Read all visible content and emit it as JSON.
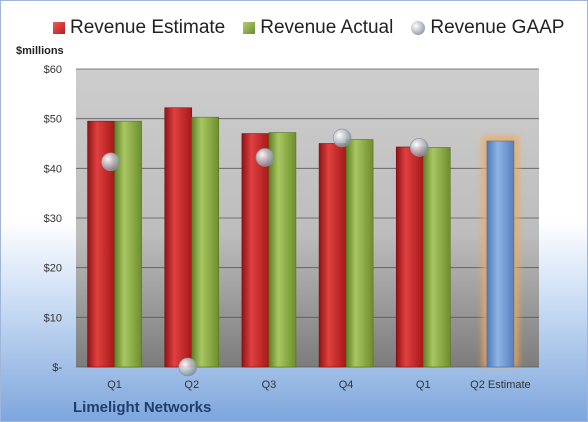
{
  "legend": {
    "estimate_label": "Revenue Estimate",
    "actual_label": "Revenue Actual",
    "gaap_label": "Revenue GAAP"
  },
  "unit_label": "$millions",
  "company": "Limelight Networks",
  "colors": {
    "estimate": "#c62828",
    "actual": "#8aab45",
    "gaap": "#a9b0b8",
    "future_estimate": "#6f9bd6",
    "future_glow": "#f2a85a"
  },
  "chart_data": {
    "type": "bar",
    "categories": [
      "Q1",
      "Q2",
      "Q3",
      "Q4",
      "Q1",
      "Q2 Estimate"
    ],
    "series": [
      {
        "name": "Revenue Estimate",
        "values": [
          49.5,
          52.2,
          47.0,
          45.0,
          44.3,
          45.5
        ]
      },
      {
        "name": "Revenue Actual",
        "values": [
          49.5,
          50.3,
          47.2,
          45.8,
          44.2,
          null
        ]
      },
      {
        "name": "Revenue GAAP",
        "values": [
          41.3,
          0,
          42.2,
          46.1,
          44.2,
          null
        ]
      }
    ],
    "ylim": [
      0,
      60
    ],
    "yticks": [
      0,
      10,
      20,
      30,
      40,
      50,
      60
    ],
    "ytick_labels": [
      "$-",
      "$10",
      "$20",
      "$30",
      "$40",
      "$50",
      "$60"
    ],
    "grid": true,
    "legend_position": "top"
  }
}
